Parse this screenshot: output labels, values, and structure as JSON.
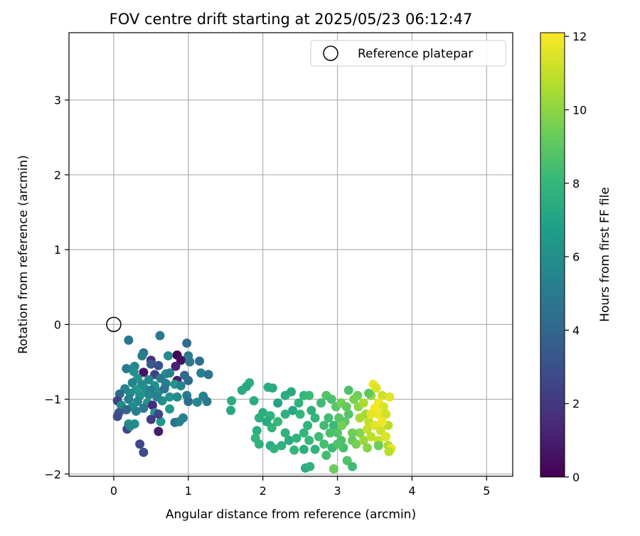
{
  "chart_data": {
    "type": "scatter",
    "title": "FOV centre drift starting at 2025/05/23 06:12:47",
    "xlabel": "Angular distance from reference (arcmin)",
    "ylabel": "Rotation from reference (arcmin)",
    "xlim": [
      -0.6,
      5.35
    ],
    "ylim": [
      -2.03,
      3.9
    ],
    "xticks": [
      "0",
      "1",
      "2",
      "3",
      "4",
      "5"
    ],
    "yticks": [
      "−2",
      "−1",
      "0",
      "1",
      "2",
      "3"
    ],
    "grid": true,
    "legend": {
      "placement": "top-right",
      "entries": [
        {
          "label": "Reference platepar",
          "marker": "open-circle"
        }
      ]
    },
    "reference_point": {
      "x": 0,
      "y": 0
    },
    "colorbar": {
      "label": "Hours from first FF file",
      "range": [
        0,
        12.1
      ],
      "ticks": [
        "0",
        "2",
        "4",
        "6",
        "8",
        "10",
        "12"
      ],
      "colormap": "viridis",
      "stops": [
        "#440154",
        "#482878",
        "#3e4989",
        "#31688e",
        "#26828e",
        "#1f9e89",
        "#35b779",
        "#6ece58",
        "#b5de2b",
        "#fde725"
      ]
    },
    "points": [
      {
        "x": 0.62,
        "y": -0.15,
        "h": 4.9
      },
      {
        "x": 0.98,
        "y": -0.25,
        "h": 4.3
      },
      {
        "x": 0.2,
        "y": -0.21,
        "h": 4.7
      },
      {
        "x": 0.85,
        "y": -0.41,
        "h": 0.2
      },
      {
        "x": 0.4,
        "y": -0.38,
        "h": 4.6
      },
      {
        "x": 0.38,
        "y": -0.42,
        "h": 5.2
      },
      {
        "x": 0.73,
        "y": -0.42,
        "h": 5.9
      },
      {
        "x": 1.0,
        "y": -0.42,
        "h": 5.0
      },
      {
        "x": 0.5,
        "y": -0.48,
        "h": 1.6
      },
      {
        "x": 0.9,
        "y": -0.48,
        "h": 0.5
      },
      {
        "x": 1.02,
        "y": -0.5,
        "h": 4.8
      },
      {
        "x": 1.15,
        "y": -0.49,
        "h": 4.4
      },
      {
        "x": 0.5,
        "y": -0.53,
        "h": 3.4
      },
      {
        "x": 0.28,
        "y": -0.56,
        "h": 5.6
      },
      {
        "x": 0.17,
        "y": -0.59,
        "h": 5.0
      },
      {
        "x": 0.6,
        "y": -0.55,
        "h": 3.0
      },
      {
        "x": 0.83,
        "y": -0.56,
        "h": 1.2
      },
      {
        "x": 0.27,
        "y": -0.63,
        "h": 6.1
      },
      {
        "x": 0.4,
        "y": -0.64,
        "h": 0.7
      },
      {
        "x": 0.55,
        "y": -0.67,
        "h": 2.5
      },
      {
        "x": 0.7,
        "y": -0.66,
        "h": 6.0
      },
      {
        "x": 0.75,
        "y": -0.65,
        "h": 5.4
      },
      {
        "x": 0.95,
        "y": -0.68,
        "h": 4.2
      },
      {
        "x": 1.17,
        "y": -0.65,
        "h": 5.3
      },
      {
        "x": 1.27,
        "y": -0.67,
        "h": 4.7
      },
      {
        "x": 0.32,
        "y": -0.72,
        "h": 6.3
      },
      {
        "x": 0.47,
        "y": -0.74,
        "h": 5.7
      },
      {
        "x": 0.63,
        "y": -0.72,
        "h": 4.9
      },
      {
        "x": 0.85,
        "y": -0.75,
        "h": 0.9
      },
      {
        "x": 1.0,
        "y": -0.75,
        "h": 4.2
      },
      {
        "x": 0.25,
        "y": -0.78,
        "h": 5.4
      },
      {
        "x": 0.38,
        "y": -0.8,
        "h": 5.8
      },
      {
        "x": 0.55,
        "y": -0.82,
        "h": 6.1
      },
      {
        "x": 0.7,
        "y": -0.79,
        "h": 5.2
      },
      {
        "x": 0.82,
        "y": -0.8,
        "h": 6.3
      },
      {
        "x": 0.9,
        "y": -0.82,
        "h": 5.5
      },
      {
        "x": 0.15,
        "y": -0.86,
        "h": 5.5
      },
      {
        "x": 0.3,
        "y": -0.87,
        "h": 6.5
      },
      {
        "x": 0.42,
        "y": -0.86,
        "h": 6.0
      },
      {
        "x": 0.5,
        "y": -0.88,
        "h": 5.0
      },
      {
        "x": 0.6,
        "y": -0.9,
        "h": 5.9
      },
      {
        "x": 0.68,
        "y": -0.86,
        "h": 4.6
      },
      {
        "x": 0.08,
        "y": -0.93,
        "h": 4.2
      },
      {
        "x": 0.22,
        "y": -0.92,
        "h": 5.7
      },
      {
        "x": 0.35,
        "y": -0.95,
        "h": 6.2
      },
      {
        "x": 0.47,
        "y": -0.94,
        "h": 5.6
      },
      {
        "x": 0.58,
        "y": -0.97,
        "h": 5.1
      },
      {
        "x": 0.98,
        "y": -0.95,
        "h": 5.2
      },
      {
        "x": 1.2,
        "y": -0.96,
        "h": 5.4
      },
      {
        "x": 0.05,
        "y": -1.02,
        "h": 2.4
      },
      {
        "x": 0.2,
        "y": -1.0,
        "h": 5.3
      },
      {
        "x": 0.32,
        "y": -1.03,
        "h": 5.6
      },
      {
        "x": 0.45,
        "y": -1.05,
        "h": 6.3
      },
      {
        "x": 0.75,
        "y": -0.97,
        "h": 6.3
      },
      {
        "x": 0.85,
        "y": -0.97,
        "h": 5.8
      },
      {
        "x": 1.0,
        "y": -1.03,
        "h": 4.3
      },
      {
        "x": 1.12,
        "y": -1.04,
        "h": 5.6
      },
      {
        "x": 1.25,
        "y": -1.03,
        "h": 4.9
      },
      {
        "x": 0.1,
        "y": -1.08,
        "h": 5.8
      },
      {
        "x": 0.25,
        "y": -1.1,
        "h": 5.9
      },
      {
        "x": 0.4,
        "y": -1.12,
        "h": 4.8
      },
      {
        "x": 0.52,
        "y": -1.08,
        "h": 1.5
      },
      {
        "x": 0.65,
        "y": -1.02,
        "h": 5.9
      },
      {
        "x": 0.75,
        "y": -1.13,
        "h": 6.5
      },
      {
        "x": 0.17,
        "y": -1.14,
        "h": 4.0
      },
      {
        "x": 0.3,
        "y": -1.16,
        "h": 5.3
      },
      {
        "x": 0.55,
        "y": -1.18,
        "h": 6.1
      },
      {
        "x": 0.07,
        "y": -1.18,
        "h": 3.3
      },
      {
        "x": 0.93,
        "y": -1.25,
        "h": 5.1
      },
      {
        "x": 0.05,
        "y": -1.23,
        "h": 2.9
      },
      {
        "x": 0.5,
        "y": -1.27,
        "h": 2.1
      },
      {
        "x": 0.63,
        "y": -1.3,
        "h": 6.5
      },
      {
        "x": 0.2,
        "y": -1.33,
        "h": 6.4
      },
      {
        "x": 0.28,
        "y": -1.33,
        "h": 6.0
      },
      {
        "x": 0.82,
        "y": -1.31,
        "h": 4.6
      },
      {
        "x": 0.88,
        "y": -1.3,
        "h": 5.4
      },
      {
        "x": 0.18,
        "y": -1.4,
        "h": 2.6
      },
      {
        "x": 0.6,
        "y": -1.43,
        "h": 0.9
      },
      {
        "x": 0.35,
        "y": -1.6,
        "h": 2.7
      },
      {
        "x": 0.4,
        "y": -1.71,
        "h": 2.8
      },
      {
        "x": 0.22,
        "y": -1.36,
        "h": 5.7
      },
      {
        "x": 0.6,
        "y": -1.2,
        "h": 2.5
      },
      {
        "x": 1.82,
        "y": -0.78,
        "h": 7.6
      },
      {
        "x": 1.78,
        "y": -0.83,
        "h": 7.2
      },
      {
        "x": 1.72,
        "y": -0.88,
        "h": 7.4
      },
      {
        "x": 2.07,
        "y": -0.84,
        "h": 7.6
      },
      {
        "x": 2.13,
        "y": -0.85,
        "h": 7.4
      },
      {
        "x": 1.58,
        "y": -1.02,
        "h": 7.5
      },
      {
        "x": 1.57,
        "y": -1.15,
        "h": 7.2
      },
      {
        "x": 1.88,
        "y": -1.02,
        "h": 7.5
      },
      {
        "x": 2.0,
        "y": -1.18,
        "h": 7.6
      },
      {
        "x": 2.1,
        "y": -1.22,
        "h": 7.8
      },
      {
        "x": 2.2,
        "y": -1.05,
        "h": 7.0
      },
      {
        "x": 2.3,
        "y": -0.95,
        "h": 7.6
      },
      {
        "x": 2.38,
        "y": -0.9,
        "h": 7.3
      },
      {
        "x": 2.48,
        "y": -1.05,
        "h": 7.8
      },
      {
        "x": 2.55,
        "y": -0.95,
        "h": 7.9
      },
      {
        "x": 2.4,
        "y": -1.15,
        "h": 7.2
      },
      {
        "x": 2.5,
        "y": -1.2,
        "h": 8.0
      },
      {
        "x": 2.3,
        "y": -1.2,
        "h": 7.7
      },
      {
        "x": 2.2,
        "y": -1.3,
        "h": 8.1
      },
      {
        "x": 1.95,
        "y": -1.25,
        "h": 7.6
      },
      {
        "x": 2.05,
        "y": -1.3,
        "h": 7.3
      },
      {
        "x": 2.12,
        "y": -1.38,
        "h": 7.9
      },
      {
        "x": 1.92,
        "y": -1.42,
        "h": 7.6
      },
      {
        "x": 1.9,
        "y": -1.52,
        "h": 8.0
      },
      {
        "x": 1.95,
        "y": -1.6,
        "h": 7.8
      },
      {
        "x": 2.1,
        "y": -1.62,
        "h": 7.5
      },
      {
        "x": 2.15,
        "y": -1.66,
        "h": 7.8
      },
      {
        "x": 2.3,
        "y": -1.45,
        "h": 7.8
      },
      {
        "x": 2.35,
        "y": -1.55,
        "h": 7.5
      },
      {
        "x": 2.45,
        "y": -1.52,
        "h": 7.9
      },
      {
        "x": 2.55,
        "y": -1.45,
        "h": 8.0
      },
      {
        "x": 2.62,
        "y": -1.55,
        "h": 8.1
      },
      {
        "x": 2.75,
        "y": -1.5,
        "h": 8.3
      },
      {
        "x": 2.82,
        "y": -1.6,
        "h": 8.5
      },
      {
        "x": 2.6,
        "y": -1.35,
        "h": 7.9
      },
      {
        "x": 2.7,
        "y": -1.25,
        "h": 8.0
      },
      {
        "x": 2.65,
        "y": -1.15,
        "h": 7.7
      },
      {
        "x": 2.62,
        "y": -0.95,
        "h": 8.2
      },
      {
        "x": 2.78,
        "y": -1.05,
        "h": 8.3
      },
      {
        "x": 2.85,
        "y": -0.95,
        "h": 8.8
      },
      {
        "x": 2.92,
        "y": -1.0,
        "h": 8.6
      },
      {
        "x": 2.98,
        "y": -1.1,
        "h": 8.9
      },
      {
        "x": 2.88,
        "y": -1.25,
        "h": 8.3
      },
      {
        "x": 2.95,
        "y": -1.35,
        "h": 8.2
      },
      {
        "x": 2.25,
        "y": -1.62,
        "h": 7.7
      },
      {
        "x": 2.55,
        "y": -1.67,
        "h": 7.6
      },
      {
        "x": 2.7,
        "y": -1.67,
        "h": 7.8
      },
      {
        "x": 2.42,
        "y": -1.68,
        "h": 8.0
      },
      {
        "x": 2.57,
        "y": -1.92,
        "h": 7.5
      },
      {
        "x": 2.63,
        "y": -1.9,
        "h": 7.8
      },
      {
        "x": 2.85,
        "y": -1.75,
        "h": 8.4
      },
      {
        "x": 2.93,
        "y": -1.65,
        "h": 8.2
      },
      {
        "x": 2.95,
        "y": -1.93,
        "h": 9.3
      },
      {
        "x": 3.13,
        "y": -1.82,
        "h": 8.7
      },
      {
        "x": 3.2,
        "y": -1.9,
        "h": 8.3
      },
      {
        "x": 3.05,
        "y": -1.55,
        "h": 8.6
      },
      {
        "x": 3.0,
        "y": -1.45,
        "h": 8.8
      },
      {
        "x": 3.1,
        "y": -1.3,
        "h": 9.0
      },
      {
        "x": 3.15,
        "y": -1.2,
        "h": 8.8
      },
      {
        "x": 3.05,
        "y": -1.05,
        "h": 9.5
      },
      {
        "x": 3.15,
        "y": -0.88,
        "h": 8.6
      },
      {
        "x": 3.27,
        "y": -0.95,
        "h": 9.4
      },
      {
        "x": 3.22,
        "y": -1.0,
        "h": 9.6
      },
      {
        "x": 2.82,
        "y": -1.35,
        "h": 8.3
      },
      {
        "x": 2.9,
        "y": -1.45,
        "h": 8.6
      },
      {
        "x": 3.08,
        "y": -1.65,
        "h": 8.5
      },
      {
        "x": 3.2,
        "y": -1.55,
        "h": 9.2
      },
      {
        "x": 3.3,
        "y": -1.45,
        "h": 9.8
      },
      {
        "x": 3.25,
        "y": -1.6,
        "h": 9.6
      },
      {
        "x": 3.35,
        "y": -1.55,
        "h": 10.2
      },
      {
        "x": 3.28,
        "y": -1.1,
        "h": 10.0
      },
      {
        "x": 3.35,
        "y": -1.05,
        "h": 10.6
      },
      {
        "x": 3.38,
        "y": -1.2,
        "h": 10.4
      },
      {
        "x": 3.42,
        "y": -1.3,
        "h": 11.0
      },
      {
        "x": 3.45,
        "y": -0.95,
        "h": 10.2
      },
      {
        "x": 3.48,
        "y": -0.8,
        "h": 11.8
      },
      {
        "x": 3.52,
        "y": -0.85,
        "h": 11.5
      },
      {
        "x": 3.42,
        "y": -0.92,
        "h": 9.0
      },
      {
        "x": 3.6,
        "y": -0.95,
        "h": 11.2
      },
      {
        "x": 3.7,
        "y": -0.97,
        "h": 11.6
      },
      {
        "x": 3.55,
        "y": -1.05,
        "h": 11.9
      },
      {
        "x": 3.62,
        "y": -1.1,
        "h": 11.4
      },
      {
        "x": 3.5,
        "y": -1.12,
        "h": 12.0
      },
      {
        "x": 3.45,
        "y": -1.2,
        "h": 11.7
      },
      {
        "x": 3.55,
        "y": -1.2,
        "h": 11.8
      },
      {
        "x": 3.65,
        "y": -1.2,
        "h": 11.3
      },
      {
        "x": 3.4,
        "y": -1.4,
        "h": 11.0
      },
      {
        "x": 3.5,
        "y": -1.35,
        "h": 11.6
      },
      {
        "x": 3.58,
        "y": -1.42,
        "h": 11.2
      },
      {
        "x": 3.68,
        "y": -1.35,
        "h": 10.8
      },
      {
        "x": 3.55,
        "y": -1.55,
        "h": 11.0
      },
      {
        "x": 3.65,
        "y": -1.5,
        "h": 11.5
      },
      {
        "x": 3.68,
        "y": -1.62,
        "h": 10.6
      },
      {
        "x": 3.72,
        "y": -1.66,
        "h": 11.8
      },
      {
        "x": 3.69,
        "y": -1.7,
        "h": 10.8
      },
      {
        "x": 3.45,
        "y": -1.5,
        "h": 10.9
      },
      {
        "x": 3.4,
        "y": -1.65,
        "h": 9.9
      },
      {
        "x": 3.55,
        "y": -1.62,
        "h": 9.3
      },
      {
        "x": 3.6,
        "y": -1.3,
        "h": 11.9
      },
      {
        "x": 3.3,
        "y": -1.25,
        "h": 10.5
      },
      {
        "x": 3.2,
        "y": -1.45,
        "h": 9.4
      },
      {
        "x": 3.12,
        "y": -1.1,
        "h": 9.1
      },
      {
        "x": 3.02,
        "y": -1.25,
        "h": 8.9
      },
      {
        "x": 3.06,
        "y": -1.35,
        "h": 9.5
      },
      {
        "x": 3.0,
        "y": -1.6,
        "h": 8.7
      }
    ]
  }
}
